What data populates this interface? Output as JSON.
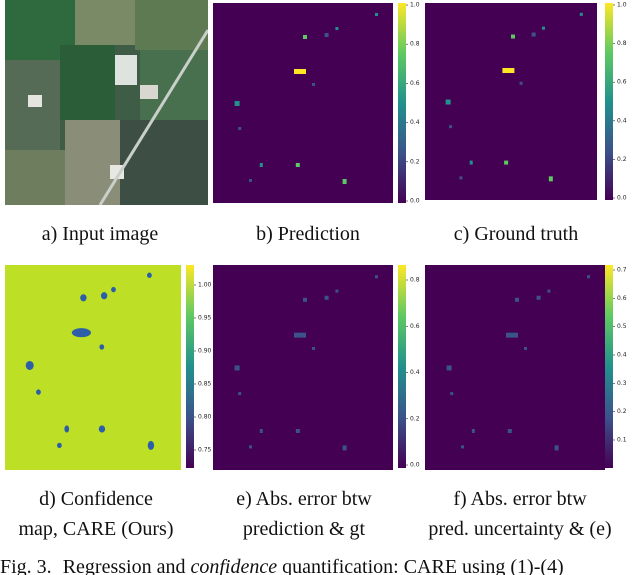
{
  "figure": {
    "panels": [
      {
        "caption": [
          "a) Input image"
        ]
      },
      {
        "caption": [
          "b) Prediction"
        ],
        "colorbar_ticks": [
          "1.0",
          "0.8",
          "0.6",
          "0.4",
          "0.2",
          "0.0"
        ]
      },
      {
        "caption": [
          "c) Ground truth"
        ],
        "colorbar_ticks": [
          "1.0",
          "0.8",
          "0.6",
          "0.4",
          "0.2",
          "0.0"
        ]
      },
      {
        "caption": [
          "d) Confidence",
          "map, CARE (Ours)"
        ],
        "colorbar_ticks": [
          "1.00",
          "0.95",
          "0.90",
          "0.85",
          "0.80",
          "0.75"
        ]
      },
      {
        "caption": [
          "e) Abs. error btw",
          "prediction & gt"
        ],
        "colorbar_ticks": [
          "0.8",
          "0.6",
          "0.4",
          "0.2",
          "0.0"
        ]
      },
      {
        "caption": [
          "f) Abs. error btw",
          "pred. uncertainty & (e)"
        ],
        "colorbar_ticks": [
          "0.7",
          "0.6",
          "0.5",
          "0.4",
          "0.3",
          "0.2",
          "0.1"
        ]
      }
    ],
    "caption": {
      "label": "Fig. 3.",
      "text_before": "Regression and",
      "emphasis": "confidence",
      "text_after": "quantification: CARE using (1)-(4)"
    }
  }
}
